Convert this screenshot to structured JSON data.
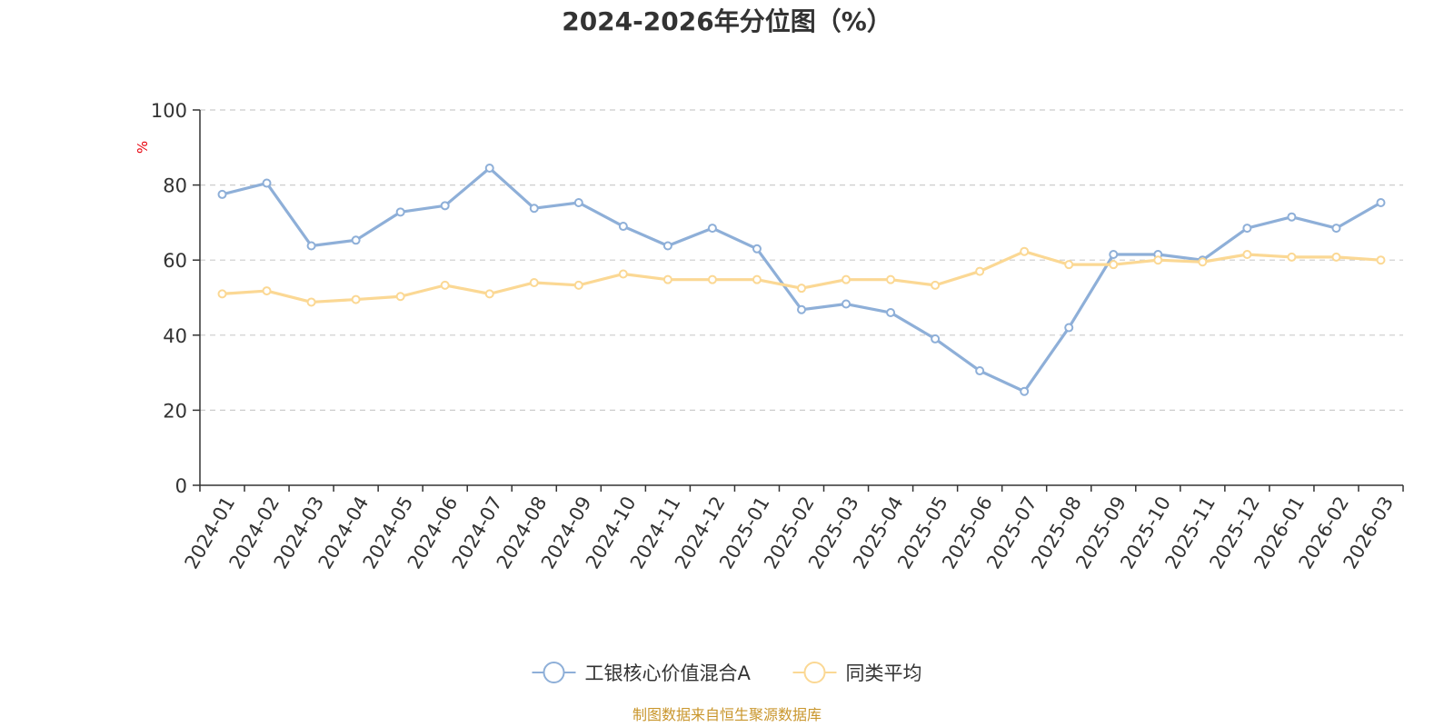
{
  "chart_data": {
    "type": "line",
    "title": "2024-2026年分位图（%）",
    "ylabel": "%",
    "ylim": [
      0,
      100
    ],
    "yticks": [
      0,
      20,
      40,
      60,
      80,
      100
    ],
    "grid": true,
    "legend_position": "bottom-center",
    "categories": [
      "2024-01",
      "2024-02",
      "2024-03",
      "2024-04",
      "2024-05",
      "2024-06",
      "2024-07",
      "2024-08",
      "2024-09",
      "2024-10",
      "2024-11",
      "2024-12",
      "2025-01",
      "2025-02",
      "2025-03",
      "2025-04",
      "2025-05",
      "2025-06",
      "2025-07",
      "2025-08",
      "2025-09",
      "2025-10",
      "2025-11",
      "2025-12",
      "2026-01",
      "2026-02",
      "2026-03"
    ],
    "series": [
      {
        "name": "工银核心价值混合A",
        "color": "#8eafd8",
        "values": [
          77.5,
          80.5,
          63.8,
          65.3,
          72.8,
          74.5,
          84.5,
          73.8,
          75.3,
          69.0,
          63.8,
          68.5,
          63.0,
          46.8,
          48.3,
          46.0,
          39.0,
          30.5,
          25.0,
          42.0,
          61.5,
          61.5,
          60.0,
          68.5,
          71.5,
          68.5,
          75.3
        ]
      },
      {
        "name": "同类平均",
        "color": "#fbd894",
        "values": [
          51.0,
          51.8,
          48.8,
          49.5,
          50.3,
          53.3,
          51.0,
          54.0,
          53.3,
          56.3,
          54.8,
          54.8,
          54.8,
          52.5,
          54.8,
          54.8,
          53.3,
          57.0,
          62.3,
          58.8,
          58.8,
          60.0,
          59.5,
          61.5,
          60.8,
          60.8,
          60.0
        ]
      }
    ]
  },
  "source_text": "制图数据来自恒生聚源数据库",
  "colors": {
    "title": "#333333",
    "axis": "#333333",
    "grid": "#cccccc",
    "unit_label": "#e8000b",
    "source": "#c9962c"
  }
}
